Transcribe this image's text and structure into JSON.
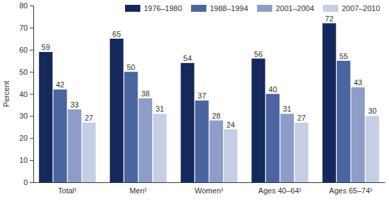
{
  "chart_data": {
    "type": "bar",
    "categories": [
      "Total¹",
      "Men¹",
      "Women¹",
      "Ages 40–64¹",
      "Ages 65–74¹"
    ],
    "series": [
      {
        "name": "1976–1980",
        "color": "#14285c",
        "values": [
          59,
          65,
          54,
          56,
          72
        ]
      },
      {
        "name": "1988–1994",
        "color": "#4b64a2",
        "values": [
          42,
          50,
          37,
          40,
          55
        ]
      },
      {
        "name": "2001–2004",
        "color": "#8e9dc7",
        "values": [
          33,
          38,
          28,
          31,
          43
        ]
      },
      {
        "name": "2007–2010",
        "color": "#c6cee6",
        "values": [
          27,
          31,
          24,
          27,
          30
        ]
      }
    ],
    "y_label": "Percent",
    "ylim": [
      0,
      80
    ],
    "yticks": [
      0,
      10,
      20,
      30,
      40,
      50,
      60,
      70,
      80
    ],
    "grid": false,
    "legend": "top",
    "data_labels": true
  }
}
